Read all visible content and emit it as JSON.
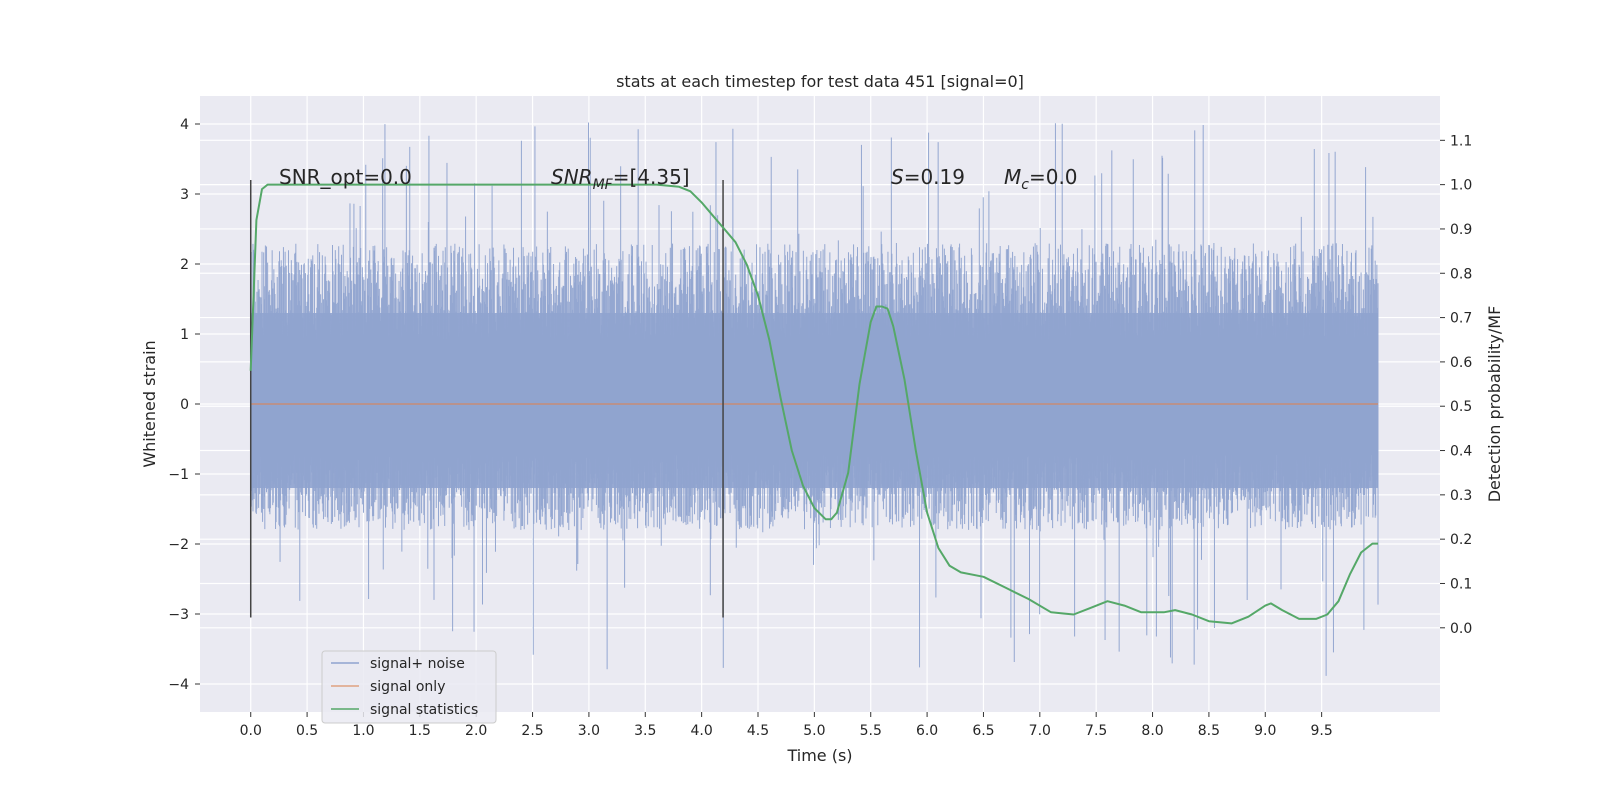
{
  "chart_data": {
    "type": "line",
    "title": "stats at each timestep for test data 451 [signal=0]",
    "xlabel": "Time (s)",
    "ylabel": "Whitened strain",
    "y2label": "Detection probability/MF",
    "xlim": [
      -0.45,
      10.55
    ],
    "ylim": [
      -4.4,
      4.4
    ],
    "y2lim": [
      -0.19,
      1.2
    ],
    "xticks": [
      "0.0",
      "0.5",
      "1.0",
      "1.5",
      "2.0",
      "2.5",
      "3.0",
      "3.5",
      "4.0",
      "4.5",
      "5.0",
      "5.5",
      "6.0",
      "6.5",
      "7.0",
      "7.5",
      "8.0",
      "8.5",
      "9.0",
      "9.5"
    ],
    "yticks": [
      "4",
      "3",
      "2",
      "1",
      "0",
      "−1",
      "−2",
      "−3",
      "−4"
    ],
    "y2ticks": [
      "1.1",
      "1.0",
      "0.9",
      "0.8",
      "0.7",
      "0.6",
      "0.5",
      "0.4",
      "0.3",
      "0.2",
      "0.1",
      "0.0"
    ],
    "grid": true,
    "legend_position": "lower-left",
    "annotations": {
      "snr_opt": "SNR_opt=0.0",
      "snr_mf_base": "SNR",
      "snr_mf_sub": "MF",
      "snr_mf_value": "=[4.35]",
      "s_symbol": "S",
      "s_value": "=0.19",
      "mc_symbol": "M",
      "mc_sub": "c",
      "mc_value": "=0.0"
    },
    "vertical_lines_x": [
      0.0,
      4.19
    ],
    "noise_range": {
      "x": [
        0.0,
        10.0
      ],
      "typical_band": [
        -1.8,
        2.3
      ],
      "peak_max": 4.05,
      "peak_min": -3.9
    },
    "series": [
      {
        "name": "signal+ noise",
        "color": "#8fa3cf",
        "axis": "left",
        "kind": "noise"
      },
      {
        "name": "signal only",
        "color": "#dd8452",
        "axis": "left",
        "x": [
          0,
          10
        ],
        "values": [
          0,
          0
        ]
      },
      {
        "name": "signal statistics",
        "color": "#55a868",
        "axis": "right",
        "x": [
          0.0,
          0.05,
          0.1,
          0.15,
          0.2,
          0.3,
          0.5,
          1.0,
          2.0,
          3.0,
          3.6,
          3.8,
          3.9,
          4.0,
          4.1,
          4.2,
          4.3,
          4.4,
          4.5,
          4.6,
          4.7,
          4.8,
          4.9,
          5.0,
          5.1,
          5.15,
          5.2,
          5.3,
          5.4,
          5.5,
          5.55,
          5.6,
          5.65,
          5.7,
          5.8,
          5.9,
          6.0,
          6.1,
          6.2,
          6.3,
          6.5,
          6.7,
          6.9,
          7.1,
          7.3,
          7.45,
          7.6,
          7.75,
          7.9,
          8.1,
          8.2,
          8.35,
          8.5,
          8.7,
          8.85,
          9.0,
          9.05,
          9.15,
          9.3,
          9.45,
          9.55,
          9.65,
          9.75,
          9.85,
          9.95,
          10.0
        ],
        "values": [
          0.58,
          0.92,
          0.99,
          1.0,
          1.0,
          1.0,
          1.0,
          1.0,
          1.0,
          1.0,
          1.0,
          0.995,
          0.985,
          0.96,
          0.93,
          0.9,
          0.87,
          0.82,
          0.75,
          0.65,
          0.52,
          0.4,
          0.32,
          0.27,
          0.245,
          0.245,
          0.26,
          0.35,
          0.55,
          0.69,
          0.725,
          0.725,
          0.72,
          0.68,
          0.56,
          0.4,
          0.26,
          0.18,
          0.14,
          0.125,
          0.115,
          0.09,
          0.065,
          0.035,
          0.03,
          0.045,
          0.06,
          0.05,
          0.035,
          0.035,
          0.04,
          0.03,
          0.015,
          0.01,
          0.025,
          0.05,
          0.055,
          0.04,
          0.02,
          0.02,
          0.03,
          0.06,
          0.12,
          0.17,
          0.19,
          0.19
        ]
      }
    ]
  }
}
